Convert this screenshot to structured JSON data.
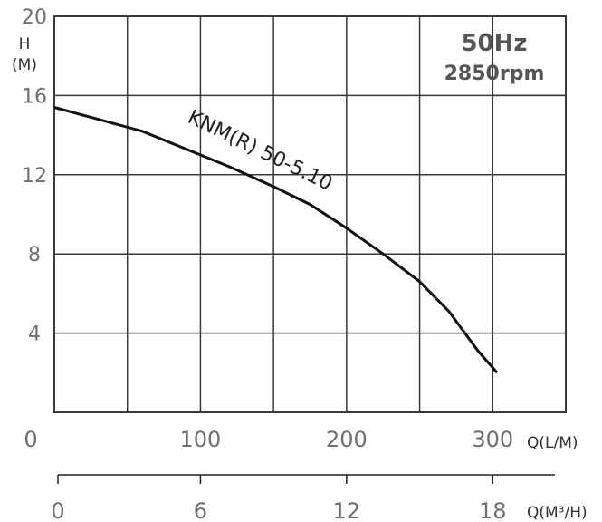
{
  "chart_data": {
    "type": "line",
    "title": "",
    "ylabel_line1": "H",
    "ylabel_line2": "(M)",
    "xlabel_primary": "Q(L/M)",
    "xlabel_secondary": "Q(M³/H)",
    "ylim": [
      0,
      20
    ],
    "xlim": [
      0,
      350
    ],
    "y_ticks": [
      "4",
      "8",
      "12",
      "16",
      "20"
    ],
    "x_ticks_primary": [
      "0",
      "100",
      "200",
      "300"
    ],
    "x_ticks_secondary": [
      "0",
      "6",
      "12",
      "18"
    ],
    "grid": true,
    "annotations": {
      "frequency": "50Hz",
      "speed": "2850rpm",
      "curve_label": "KNM(R) 50-5.10"
    },
    "series": [
      {
        "name": "KNM(R) 50-5.10",
        "x": [
          0,
          30,
          60,
          90,
          120,
          150,
          175,
          200,
          225,
          250,
          270,
          290,
          303
        ],
        "y": [
          15.4,
          14.8,
          14.2,
          13.3,
          12.4,
          11.4,
          10.5,
          9.3,
          8.0,
          6.6,
          5.1,
          3.1,
          2.0
        ]
      }
    ]
  }
}
